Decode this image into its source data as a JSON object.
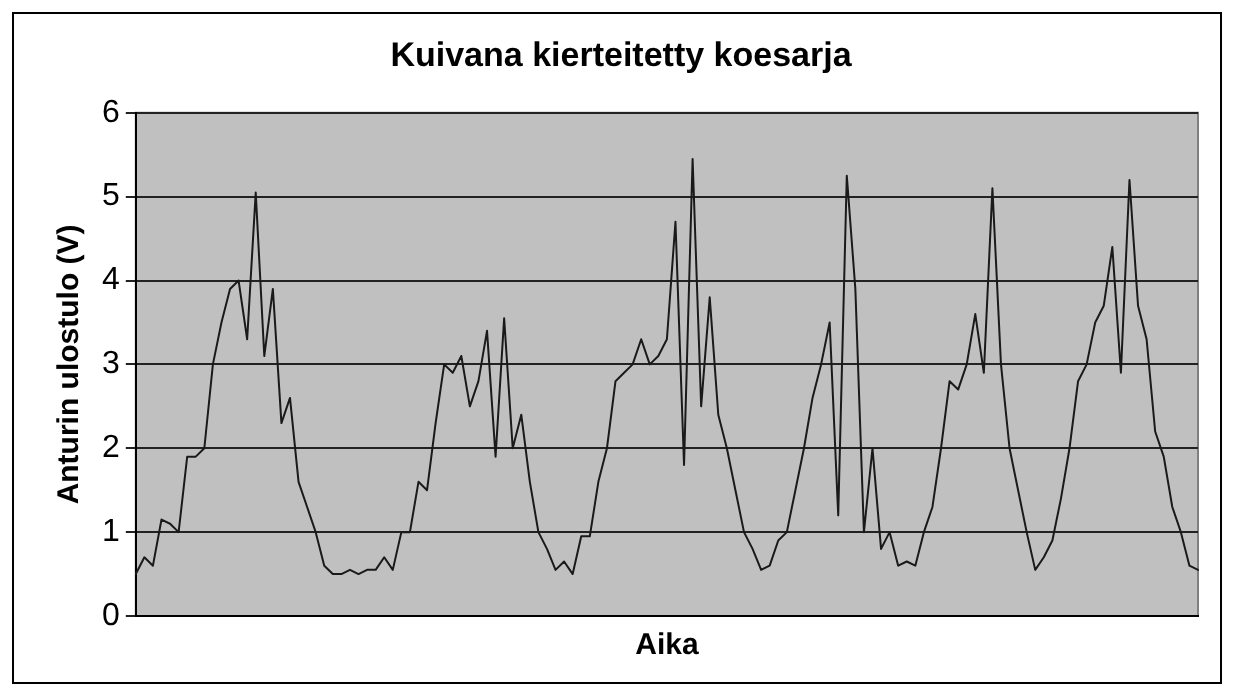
{
  "chart_data": {
    "type": "line",
    "title": "Kuivana kierteitetty koesarja",
    "xlabel": "Aika",
    "ylabel": "Anturin ulostulo (V)",
    "categories": [
      null,
      null,
      null,
      null,
      null,
      null,
      null,
      null,
      null,
      null,
      null,
      null,
      null,
      null,
      null,
      null,
      null,
      null,
      null,
      null,
      null,
      null,
      null,
      null,
      null,
      null,
      null,
      null,
      null,
      null,
      null,
      null,
      null,
      null,
      null,
      null,
      null,
      null,
      null,
      null,
      null,
      null,
      null,
      null,
      null,
      null,
      null,
      null,
      null,
      null,
      null,
      null,
      null,
      null,
      null,
      null,
      null,
      null,
      null,
      null,
      null,
      null,
      null,
      null,
      null,
      null,
      null,
      null,
      null,
      null,
      null,
      null,
      null,
      null,
      null,
      null,
      null,
      null,
      null,
      null,
      null,
      null,
      null,
      null,
      null,
      null,
      null,
      null,
      null,
      null,
      null,
      null,
      null,
      null,
      null,
      null,
      null,
      null,
      null,
      null,
      null,
      null,
      null,
      null,
      null,
      null,
      null,
      null,
      null,
      null,
      null,
      null,
      null,
      null,
      null,
      null,
      null,
      null,
      null,
      null,
      null,
      null,
      null,
      null,
      null
    ],
    "series": [
      {
        "color": "#1a1a1a",
        "values": [
          0.5,
          0.7,
          0.6,
          1.15,
          1.1,
          1.0,
          1.9,
          1.9,
          2.0,
          3.0,
          3.5,
          3.9,
          4.0,
          3.3,
          5.05,
          3.1,
          3.9,
          2.3,
          2.6,
          1.6,
          1.3,
          1.0,
          0.6,
          0.5,
          0.5,
          0.55,
          0.5,
          0.55,
          0.55,
          0.7,
          0.55,
          1.0,
          1.0,
          1.6,
          1.5,
          2.3,
          3.0,
          2.9,
          3.1,
          2.5,
          2.8,
          3.4,
          1.9,
          3.55,
          2.0,
          2.4,
          1.6,
          1.0,
          0.8,
          0.55,
          0.65,
          0.5,
          0.95,
          0.95,
          1.6,
          2.0,
          2.8,
          2.9,
          3.0,
          3.3,
          3.0,
          3.1,
          3.3,
          4.7,
          1.8,
          5.45,
          2.5,
          3.8,
          2.4,
          2.0,
          1.5,
          1.0,
          0.8,
          0.55,
          0.6,
          0.9,
          1.0,
          1.5,
          2.0,
          2.6,
          3.0,
          3.5,
          1.2,
          5.25,
          3.9,
          1.0,
          2.0,
          0.8,
          1.0,
          0.6,
          0.65,
          0.6,
          1.0,
          1.3,
          2.0,
          2.8,
          2.7,
          3.0,
          3.6,
          2.9,
          5.1,
          3.0,
          2.0,
          1.5,
          1.0,
          0.55,
          0.7,
          0.9,
          1.4,
          2.0,
          2.8,
          3.0,
          3.5,
          3.7,
          4.4,
          2.9,
          5.2,
          3.7,
          3.3,
          2.2,
          1.9,
          1.3,
          1.0,
          0.6,
          0.55
        ]
      }
    ],
    "ylim": [
      0,
      6
    ],
    "yticks": [
      0,
      1,
      2,
      3,
      4,
      5,
      6
    ],
    "grid": "y",
    "legend": false,
    "marker": "none",
    "line_style": "solid",
    "tick_labels": "y"
  }
}
